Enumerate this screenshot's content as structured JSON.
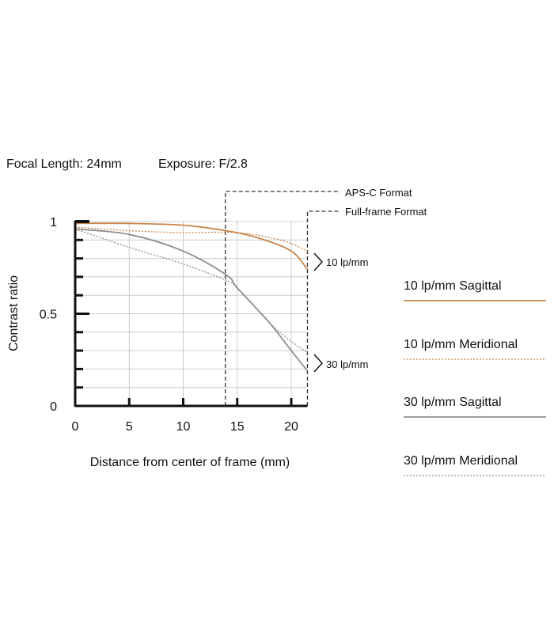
{
  "header": {
    "focal_length": "Focal Length: 24mm",
    "exposure": "Exposure: F/2.8"
  },
  "chart_data": {
    "type": "line",
    "xlabel": "Distance from center of frame (mm)",
    "ylabel": "Contrast ratio",
    "xlim": [
      0,
      21.5
    ],
    "ylim": [
      0,
      1
    ],
    "x_ticks": [
      "0",
      "5",
      "10",
      "15",
      "20"
    ],
    "y_ticks": [
      "0",
      "0.5",
      "1"
    ],
    "grid": true,
    "legend_placement": "right",
    "annotations": {
      "aps_c": {
        "label": "APS-C Format",
        "x": 13.9
      },
      "full_frame": {
        "label": "Full-frame Format",
        "x": 21.5
      },
      "group_10": "10 lp/mm",
      "group_30": "30 lp/mm"
    },
    "series": [
      {
        "name": "10 lp/mm Sagittal",
        "color": "#c8864a",
        "style": "solid",
        "x": [
          0,
          5,
          10,
          14,
          17,
          20,
          21.5
        ],
        "y": [
          0.99,
          0.99,
          0.98,
          0.95,
          0.91,
          0.84,
          0.74
        ]
      },
      {
        "name": "10 lp/mm Meridional",
        "color": "#c8864a",
        "style": "dotted",
        "x": [
          0,
          5,
          10,
          15,
          19,
          21.5
        ],
        "y": [
          0.97,
          0.95,
          0.94,
          0.94,
          0.9,
          0.84
        ]
      },
      {
        "name": "30 lp/mm Sagittal",
        "color": "#8f8f8f",
        "style": "solid",
        "x": [
          0,
          5,
          10,
          14,
          15,
          18,
          20,
          21.5
        ],
        "y": [
          0.96,
          0.93,
          0.84,
          0.71,
          0.64,
          0.45,
          0.3,
          0.19
        ]
      },
      {
        "name": "30 lp/mm Meridional",
        "color": "#8f8f8f",
        "style": "dotted",
        "x": [
          0,
          5,
          10,
          14,
          15,
          18,
          20,
          21.5
        ],
        "y": [
          0.96,
          0.86,
          0.77,
          0.68,
          0.64,
          0.45,
          0.35,
          0.29
        ]
      }
    ]
  }
}
